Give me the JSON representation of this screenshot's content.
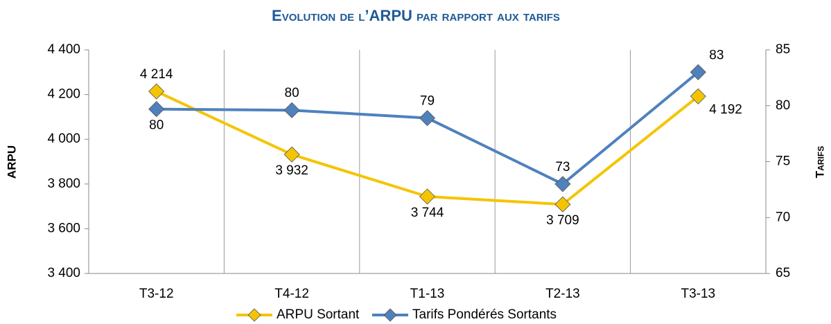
{
  "chart_data": {
    "type": "line",
    "title": "Evolution de l’ARPU par rapport aux tarifs",
    "y_label": "ARPU",
    "y2_label": "Tarifs",
    "categories": [
      "T3-12",
      "T4-12",
      "T1-13",
      "T2-13",
      "T3-13"
    ],
    "series": [
      {
        "name": "ARPU Sortant",
        "color": "#f5c400",
        "values": [
          4214,
          3932,
          3744,
          3709,
          4192
        ],
        "value_labels": [
          "4 214",
          "3 932",
          "3 744",
          "3 709",
          "4 192"
        ]
      },
      {
        "name": "Tarifs Pondérés Sortants",
        "color": "#4f81bd",
        "axis": "y2",
        "values": [
          79.7,
          79.6,
          78.9,
          73,
          83
        ],
        "value_labels": [
          "80",
          "80",
          "79",
          "73",
          "83"
        ]
      }
    ],
    "ylim": [
      3400,
      4400
    ],
    "yticks": [
      {
        "value": 3400,
        "label": "3 400"
      },
      {
        "value": 3600,
        "label": "3 600"
      },
      {
        "value": 3800,
        "label": "3 800"
      },
      {
        "value": 4000,
        "label": "4 000"
      },
      {
        "value": 4200,
        "label": "4 200"
      },
      {
        "value": 4400,
        "label": "4 400"
      }
    ],
    "y2lim": [
      65,
      85
    ],
    "y2ticks": [
      65,
      70,
      75,
      80,
      85
    ],
    "legend": "bottom"
  }
}
